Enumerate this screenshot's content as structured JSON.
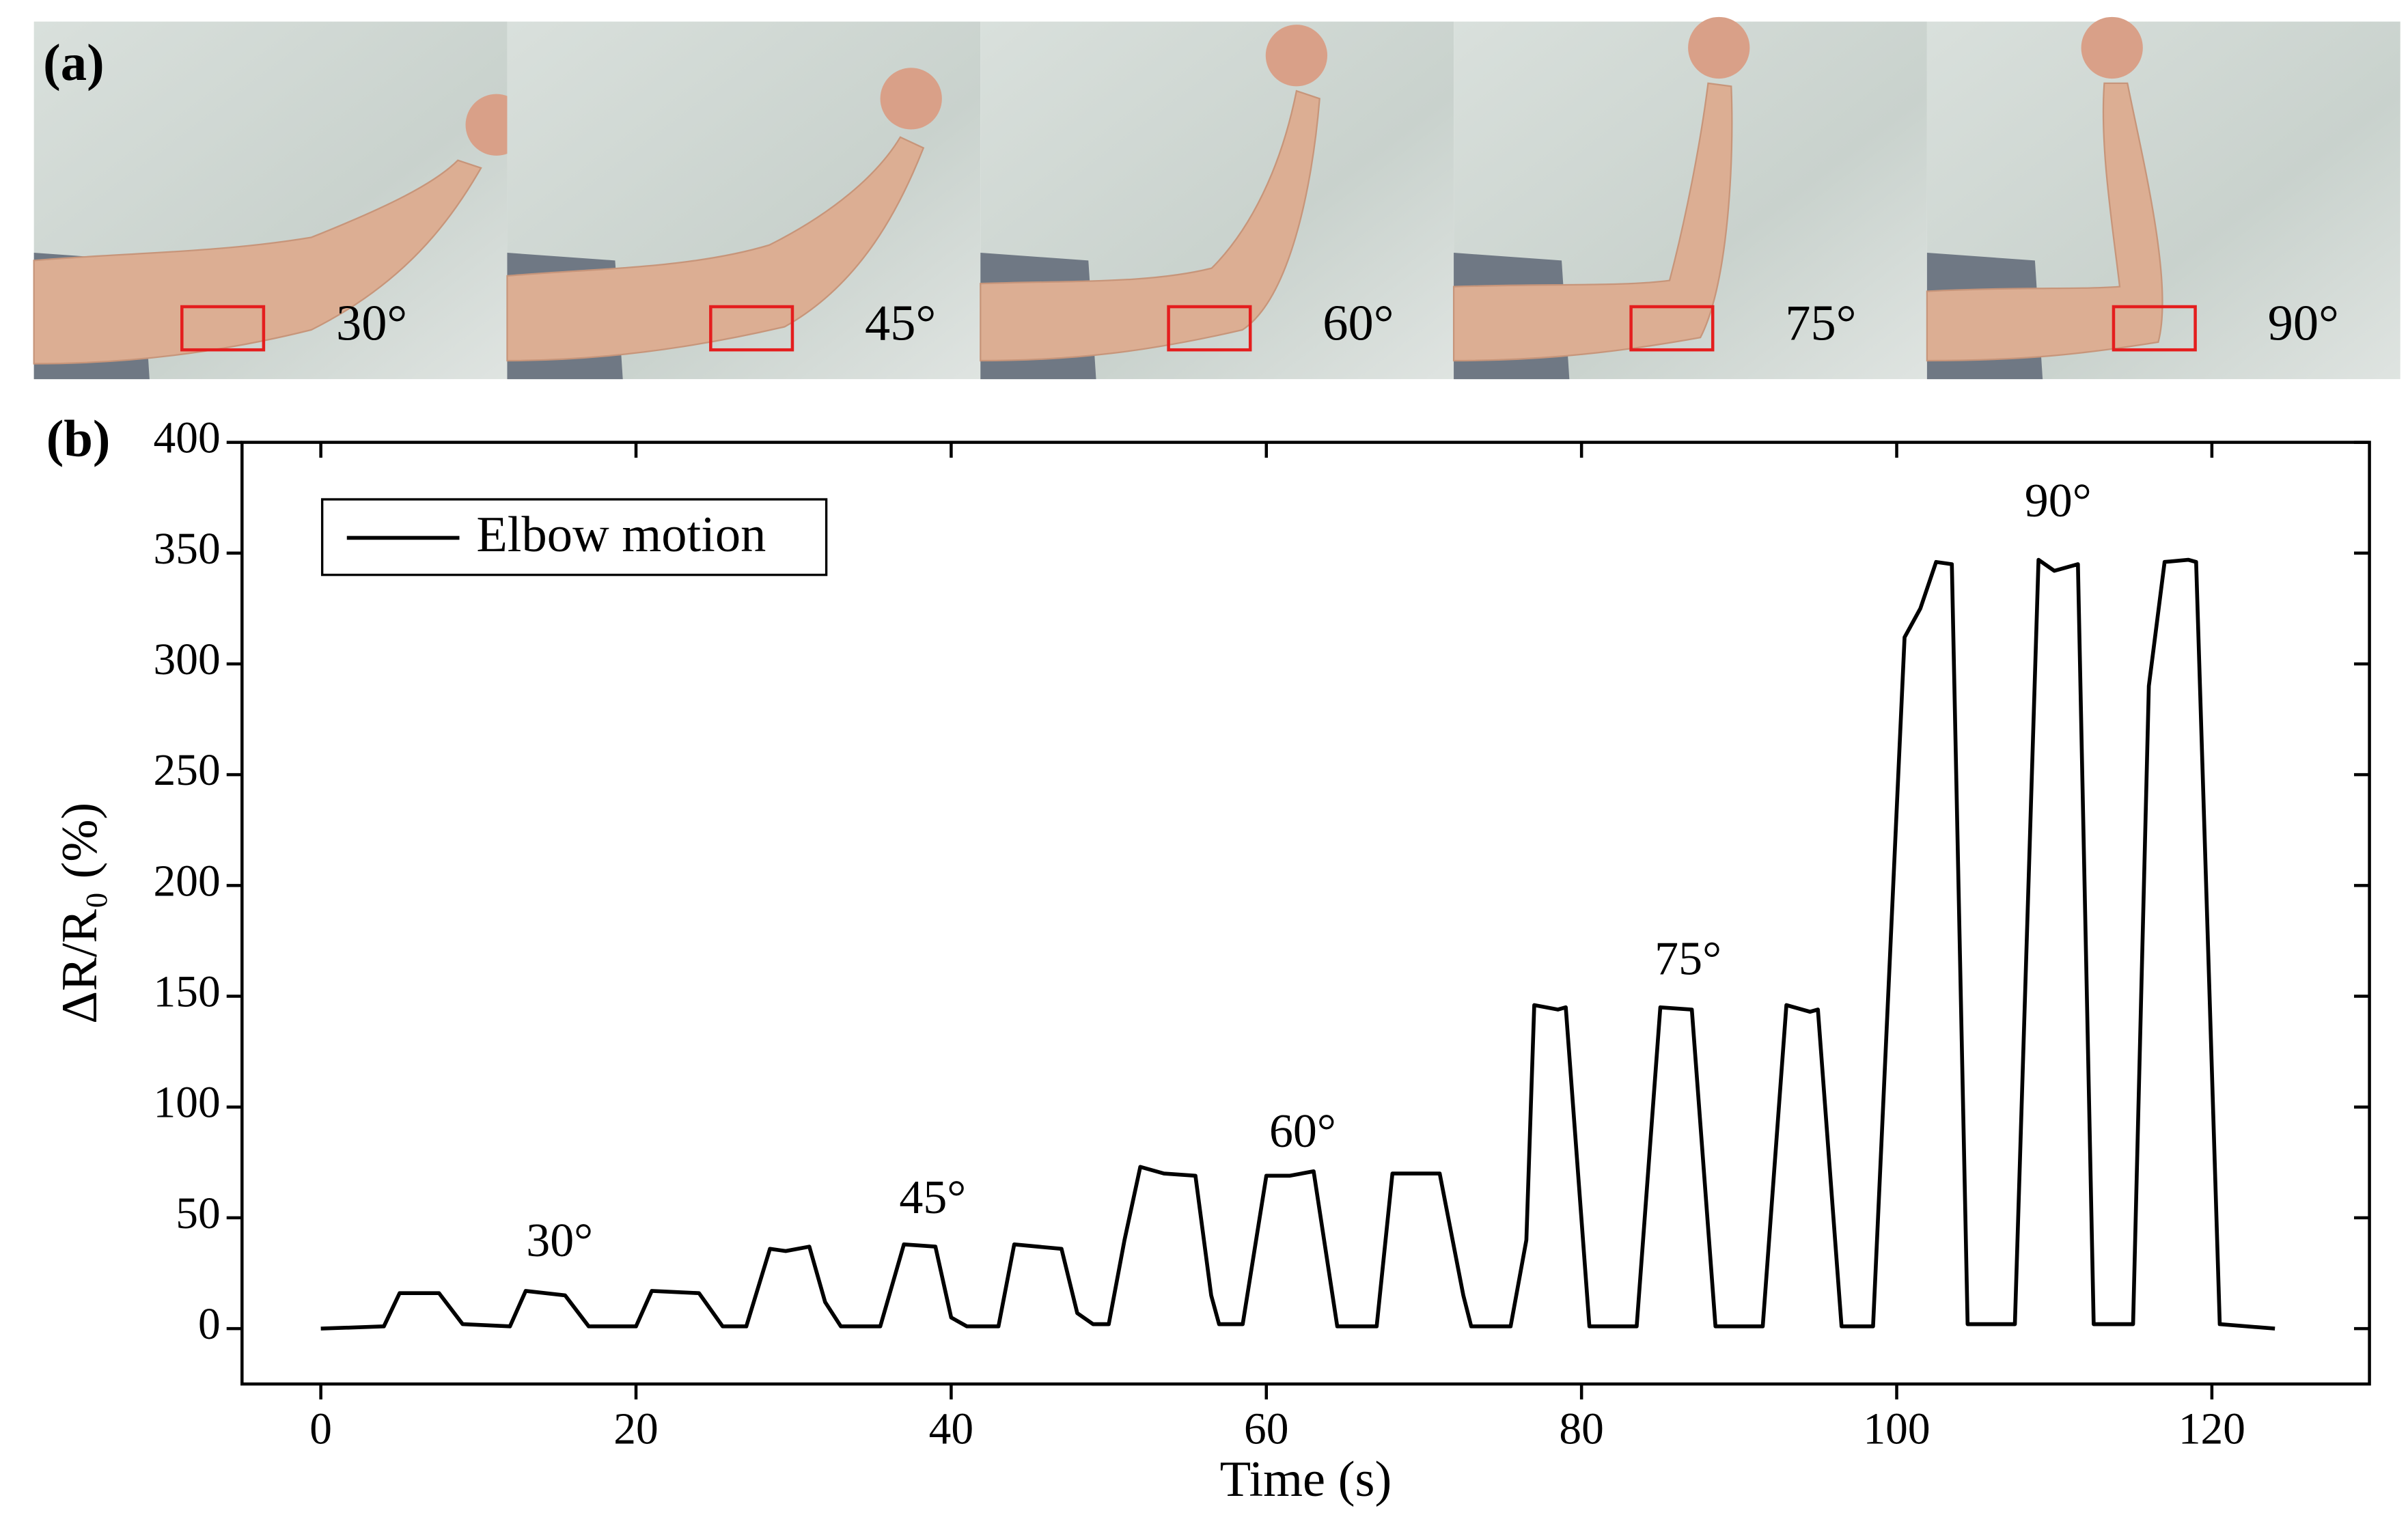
{
  "panel_a": {
    "label": "(a)",
    "photos": [
      {
        "label": "30°"
      },
      {
        "label": "45°"
      },
      {
        "label": "60°"
      },
      {
        "label": "75°"
      },
      {
        "label": "90°"
      }
    ]
  },
  "chart_data": {
    "type": "line",
    "panel_label": "(b)",
    "xlabel": "Time (s)",
    "ylabel": "ΔR/R₀ (%)",
    "xlim": [
      -5,
      130
    ],
    "ylim": [
      -25,
      400
    ],
    "xticks": [
      0,
      20,
      40,
      60,
      80,
      100,
      120
    ],
    "yticks": [
      0,
      50,
      100,
      150,
      200,
      250,
      300,
      350,
      400
    ],
    "legend": "upper left",
    "annotations": [
      "30°",
      "45°",
      "60°",
      "75°",
      "90°"
    ],
    "x": [
      0,
      4,
      5,
      7.5,
      9,
      12,
      13,
      15.5,
      17,
      20,
      21,
      24,
      25.5,
      27,
      28.5,
      29.5,
      31,
      32,
      33,
      35.5,
      37,
      39,
      40,
      41,
      43,
      44,
      47,
      48,
      49,
      50,
      51,
      52,
      53.5,
      55.5,
      56.5,
      57,
      58.5,
      60,
      61.5,
      63,
      64.5,
      67,
      68,
      71,
      72.5,
      73,
      75.5,
      76.5,
      77,
      78.5,
      79,
      80.5,
      83.5,
      85,
      87,
      88.5,
      91.5,
      93,
      94.5,
      95,
      96.5,
      98.5,
      100.5,
      101.5,
      102.5,
      103.5,
      104.5,
      107.5,
      109,
      110,
      111.5,
      112.5,
      115,
      116,
      117,
      118.5,
      119,
      120.5,
      124
    ],
    "series": [
      {
        "name": "Elbow motion",
        "color": "#000000",
        "values": [
          0,
          1,
          16,
          16,
          2,
          1,
          17,
          15,
          1,
          1,
          17,
          16,
          1,
          1,
          36,
          35,
          37,
          12,
          1,
          1,
          38,
          37,
          5,
          1,
          1,
          38,
          36,
          7,
          2,
          2,
          40,
          73,
          70,
          69,
          15,
          2,
          2,
          69,
          69,
          71,
          1,
          1,
          70,
          70,
          15,
          1,
          1,
          40,
          146,
          144,
          145,
          1,
          1,
          145,
          144,
          1,
          1,
          146,
          143,
          144,
          1,
          1,
          312,
          325,
          346,
          345,
          2,
          2,
          347,
          342,
          345,
          2,
          2,
          290,
          346,
          347,
          346,
          2,
          0
        ]
      }
    ]
  }
}
